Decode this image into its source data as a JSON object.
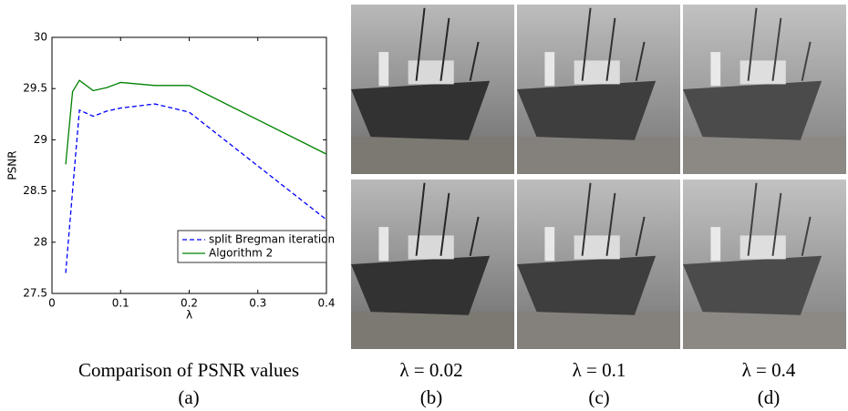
{
  "chart_data": {
    "type": "line",
    "xlabel": "λ",
    "ylabel": "PSNR",
    "x": [
      0.02,
      0.03,
      0.04,
      0.06,
      0.08,
      0.1,
      0.15,
      0.2,
      0.4
    ],
    "series": [
      {
        "name": "split Bregman iteration",
        "color": "#0000ff",
        "linestyle": "dashed",
        "values": [
          27.7,
          28.5,
          29.29,
          29.23,
          29.28,
          29.31,
          29.35,
          29.27,
          28.22
        ]
      },
      {
        "name": "Algorithm 2",
        "color": "#008000",
        "linestyle": "solid",
        "values": [
          28.76,
          29.47,
          29.58,
          29.48,
          29.51,
          29.56,
          29.53,
          29.53,
          28.86
        ]
      }
    ],
    "xlim": [
      0,
      0.4
    ],
    "xticks": [
      0,
      0.1,
      0.2,
      0.3,
      0.4
    ],
    "ylim": [
      27.5,
      30
    ],
    "yticks": [
      27.5,
      28,
      28.5,
      29,
      29.5,
      30
    ],
    "grid": false,
    "legend": "lower right"
  },
  "figure": {
    "panels": [
      {
        "caption": "Comparison of PSNR values",
        "label": "(a)"
      },
      {
        "caption": "λ = 0.02",
        "label": "(b)"
      },
      {
        "caption": "λ = 0.1",
        "label": "(c)"
      },
      {
        "caption": "λ = 0.4",
        "label": "(d)"
      }
    ]
  }
}
